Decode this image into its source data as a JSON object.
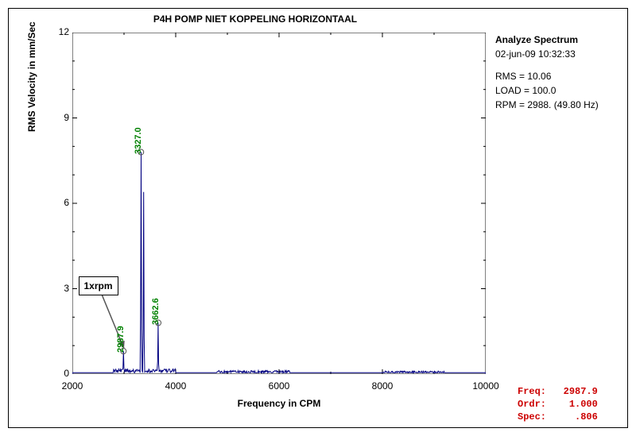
{
  "title": "P4H   POMP NIET KOPPELING HORIZONTAAL",
  "chart": {
    "type": "line-spectrum",
    "xlabel": "Frequency in CPM",
    "ylabel": "RMS Velocity in mm/Sec",
    "xlim": [
      2000,
      10000
    ],
    "ylim": [
      0,
      12
    ],
    "xticks": [
      2000,
      4000,
      6000,
      8000,
      10000
    ],
    "yticks": [
      0,
      3,
      6,
      9,
      12
    ],
    "background_color": "#ffffff",
    "axis_color": "#000000",
    "line_color": "#000080",
    "line_width": 1,
    "minor_tick_x_step": 1000,
    "minor_tick_y_step": 1,
    "description": "FFT spectrum line: near-zero noise floor with sharp peaks at labeled CPM values, small activity below 4000 CPM and minor bumps near 5000–6000 and 8000–9000.",
    "peaks": [
      {
        "cpm": 2987.9,
        "value": 0.806,
        "label": "2987.9"
      },
      {
        "cpm": 3327.0,
        "value": 7.8,
        "label": "3327.0"
      },
      {
        "cpm": 3380.0,
        "value": 6.4
      },
      {
        "cpm": 3662.6,
        "value": 1.8,
        "label": "3662.6"
      }
    ],
    "noise_floor": 0.15
  },
  "annotation": {
    "text": "1xrpm",
    "arrow_from": {
      "cpm": 3000,
      "value": 0.9
    },
    "box_at": {
      "cpm": 2500,
      "value": 3.1
    }
  },
  "info": {
    "heading": "Analyze Spectrum",
    "timestamp": "02-jun-09  10:32:33",
    "rms_label": "RMS =",
    "rms_value": "10.06",
    "load_label": "LOAD =",
    "load_value": "100.0",
    "rpm_label": "RPM =",
    "rpm_value": "2988. (49.80 Hz)"
  },
  "cursor": {
    "freq_label": "Freq:",
    "freq_value": "2987.9",
    "ordr_label": "Ordr:",
    "ordr_value": "1.000",
    "spec_label": "Spec:",
    "spec_value": ".806"
  }
}
